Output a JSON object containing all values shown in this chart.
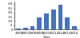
{
  "categories": [
    "2006",
    "2007",
    "2008",
    "2009",
    "2010",
    "2011",
    "2012",
    "2013",
    "2014"
  ],
  "values": [
    0.1,
    0.2,
    0.4,
    1.4,
    1.9,
    2.3,
    2.9,
    1.4,
    0.4
  ],
  "bar_color": "#4472c4",
  "xlabel": "Year",
  "ylabel": "",
  "ylim": [
    0,
    3.2
  ],
  "yticks": [
    0.0,
    0.5,
    1.0,
    1.5,
    2.0,
    2.5,
    3.0
  ],
  "ytick_labels": [
    "0",
    ".5",
    "1.0",
    "1.5",
    "2.0",
    "2.5",
    "3.0"
  ],
  "background_color": "#ffffff",
  "tick_fontsize": 2.8,
  "label_fontsize": 2.8
}
